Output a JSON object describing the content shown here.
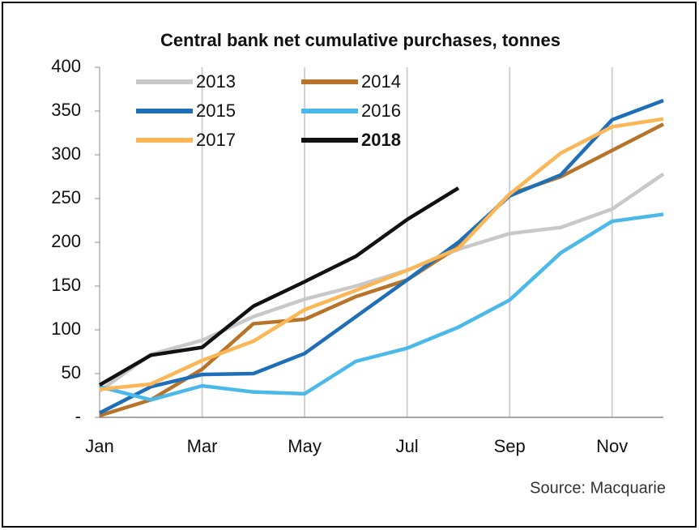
{
  "chart_data": {
    "type": "line",
    "title": "Central bank net cumulative purchases, tonnes",
    "source": "Source:  Macquarie",
    "categories": [
      "Jan",
      null,
      "Mar",
      null,
      "May",
      null,
      "Jul",
      null,
      "Sep",
      null,
      "Nov",
      null
    ],
    "series": [
      {
        "name": "2013",
        "color": "#c8c8c8",
        "values": [
          30,
          72,
          88,
          115,
          135,
          150,
          168,
          192,
          210,
          217,
          238,
          278
        ]
      },
      {
        "name": "2014",
        "color": "#b8732a",
        "values": [
          2,
          20,
          55,
          107,
          112,
          138,
          157,
          195,
          255,
          275,
          305,
          335
        ]
      },
      {
        "name": "2015",
        "color": "#1f6fb8",
        "values": [
          5,
          35,
          49,
          50,
          73,
          115,
          157,
          200,
          253,
          277,
          340,
          362
        ]
      },
      {
        "name": "2016",
        "color": "#4ab8e8",
        "values": [
          35,
          20,
          36,
          29,
          27,
          64,
          79,
          103,
          134,
          188,
          224,
          232
        ]
      },
      {
        "name": "2017",
        "color": "#fbb655",
        "values": [
          32,
          38,
          65,
          87,
          123,
          145,
          168,
          193,
          255,
          302,
          332,
          341
        ]
      },
      {
        "name": "2018",
        "color": "#111111",
        "bold": true,
        "values": [
          37,
          71,
          80,
          127,
          155,
          184,
          226,
          262,
          null,
          null,
          null,
          null
        ]
      }
    ],
    "ylim": [
      0,
      400
    ],
    "yticks": [
      {
        "value": 0,
        "label": "-"
      },
      50,
      100,
      150,
      200,
      250,
      300,
      350,
      400
    ],
    "grid": true
  }
}
